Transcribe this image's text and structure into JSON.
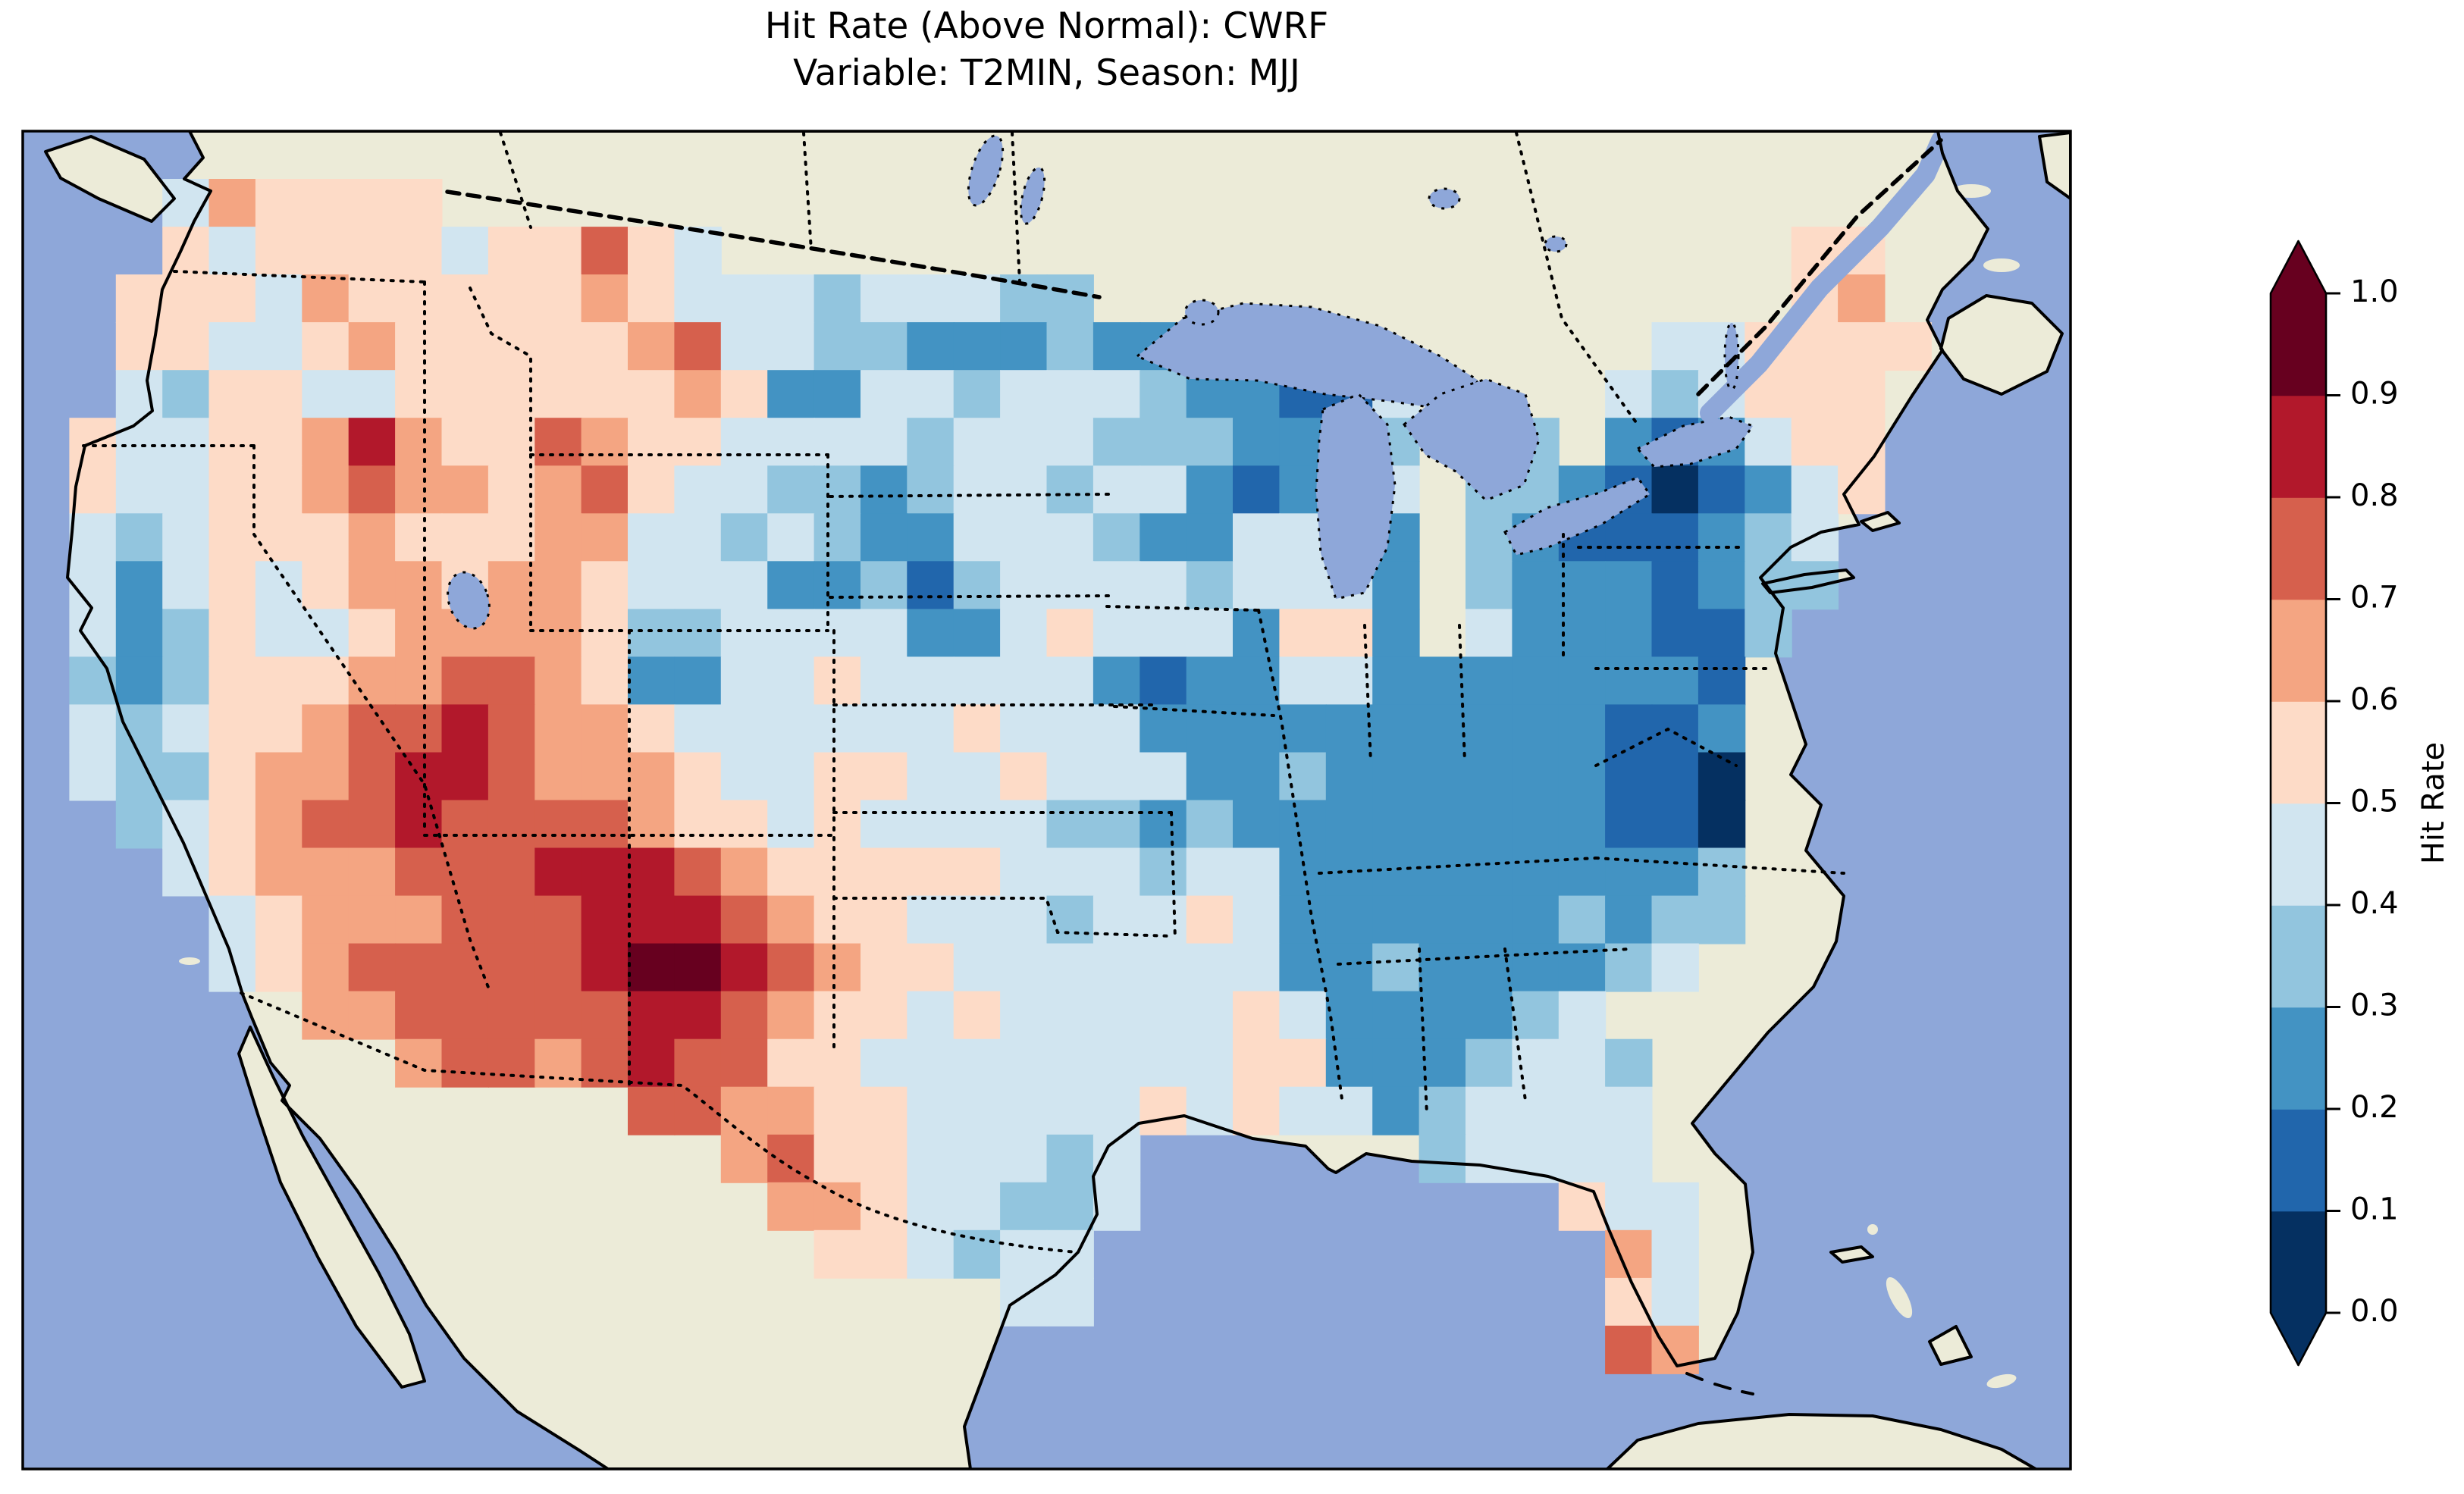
{
  "title": {
    "line1": "Hit Rate (Above Normal): CWRF",
    "line2": "Variable: T2MIN, Season: MJJ"
  },
  "map": {
    "ocean_color": "#8ea7d9",
    "land_color": "#ecebd8",
    "lake_color": "#8ea7d9",
    "coast_color": "#000000"
  },
  "colorbar": {
    "label": "Hit Rate",
    "tick_labels": [
      "0.0",
      "0.1",
      "0.2",
      "0.3",
      "0.4",
      "0.5",
      "0.6",
      "0.7",
      "0.8",
      "0.9",
      "1.0"
    ],
    "bin_colors": [
      "#053061",
      "#2166ac",
      "#4393c3",
      "#92c5de",
      "#d1e5f0",
      "#fddbc7",
      "#f4a582",
      "#d6604d",
      "#b2182b",
      "#67001f"
    ],
    "extend_low_color": "#053061",
    "extend_high_color": "#67001f",
    "extend": "both"
  },
  "chart_data": {
    "type": "heatmap",
    "title": "Hit Rate (Above Normal): CWRF",
    "subtitle": "Variable: T2MIN, Season: MJJ",
    "metric": "Hit Rate",
    "model": "CWRF",
    "variable": "T2MIN",
    "season": "MJJ",
    "region": "Contiguous United States (Lambert-style map, gridded ~0.5 deg cells)",
    "colormap": "RdBu_r discrete, 10 bins",
    "bin_edges": [
      0.0,
      0.1,
      0.2,
      0.3,
      0.4,
      0.5,
      0.6,
      0.7,
      0.8,
      0.9,
      1.0
    ],
    "bin_colors": [
      "#053061",
      "#2166ac",
      "#4393c3",
      "#92c5de",
      "#d1e5f0",
      "#fddbc7",
      "#f4a582",
      "#d6604d",
      "#b2182b",
      "#67001f"
    ],
    "grid_encoding": "Each row is 5 strings joined to 44 chars (44 cols x 28 rows over the map frame). Digit d = value bin index (bin center = 0.05 + 0.1*d, e.g. 7 = 0.70-0.80). '.' = no data (outside CONUS). Values estimated from the figure.",
    "grid_cols": 44,
    "grid_rows": 28,
    "grid": [
      [
        "..........",
        "..........",
        "..........",
        "..........",
        "...."
      ],
      [
        "...465555.",
        "..........",
        "..........",
        "..........",
        "...."
      ],
      [
        "...5455554",
        "55754.....",
        "..........",
        "........55",
        "...."
      ],
      [
        "..55546555",
        "5565444344",
        "433.......",
        "........56",
        "...."
      ],
      [
        "..55445655",
        "5556744332",
        "22322.....",
        ".....44555",
        "5..."
      ],
      [
        "..43554455",
        "5555652244",
        "3444322114",
        "....434555",
        "...."
      ],
      [
        ".544556865",
        "5765544443",
        "4443332243",
        ".33.212455",
        "...."
      ],
      [
        ".544556766",
        "5675443323",
        "4434421234",
        ".332101245",
        "...."
      ],
      [
        ".434555655",
        "5664434322",
        "4443224452",
        ".32111234.",
        "...."
      ],
      [
        ".424545665",
        "6654442231",
        "3444434442",
        ".32221233.",
        "...."
      ],
      [
        ".423544566",
        "6653344442",
        "2454442552",
        ".4222113..",
        "...."
      ],
      [
        ".323555667",
        "7652244544",
        "4442122442",
        "2222221...",
        "...."
      ],
      [
        ".434556778",
        "7665444444",
        "5444222222",
        "2222112...",
        "...."
      ],
      [
        ".433566788",
        "7666544554",
        "4544422322",
        "2222110...",
        "...."
      ],
      [
        "..34567787",
        "7776554544",
        "4433232222",
        "2222110...",
        "...."
      ],
      [
        "...4566677",
        "7888765555",
        "5444344222",
        "2222223...",
        "...."
      ],
      [
        "....456667",
        "7788876554",
        "4434454222",
        "2223233...",
        "...."
      ],
      [
        "....456777",
        "7789987655",
        "4444444223",
        "222234....",
        "...."
      ],
      [
        "......6677",
        "7778876554",
        "5444445422",
        "2234......",
        "...."
      ],
      [
        "........67",
        "7678775544",
        "4444445522",
        "23443.....",
        "...."
      ],
      [
        "..........",
        "...7766554",
        "4444545442",
        "34444.....",
        "...."
      ],
      [
        "..........",
        ".....67554",
        "4434......",
        "34444.....",
        "...."
      ],
      [
        "..........",
        "......6654",
        "4334......",
        "...544....",
        "...."
      ],
      [
        "..........",
        ".......554",
        "344.......",
        "....64....",
        "...."
      ],
      [
        "..........",
        "..........",
        ".44.......",
        "....54....",
        "...."
      ],
      [
        "..........",
        "..........",
        "..........",
        "....76....",
        "...."
      ],
      [
        "..........",
        "..........",
        "..........",
        "..........",
        "...."
      ],
      [
        "..........",
        "..........",
        "..........",
        "..........",
        "...."
      ]
    ],
    "legend_position": "right vertical colorbar",
    "colorbar_label": "Hit Rate",
    "colorbar_ticks": [
      0.0,
      0.1,
      0.2,
      0.3,
      0.4,
      0.5,
      0.6,
      0.7,
      0.8,
      0.9,
      1.0
    ]
  }
}
